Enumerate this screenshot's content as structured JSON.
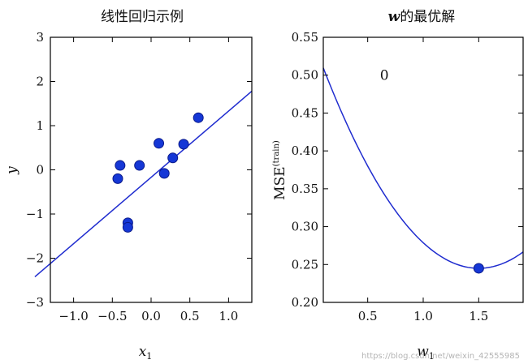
{
  "chart_data": [
    {
      "type": "scatter",
      "title": "线性回归示例",
      "xlabel": "x",
      "xlabel_sub": "1",
      "ylabel": "y",
      "xlim": [
        -1.3,
        1.3
      ],
      "ylim": [
        -3,
        3
      ],
      "xticks": [
        -1.0,
        -0.5,
        0.0,
        0.5,
        1.0
      ],
      "yticks": [
        3,
        2,
        1,
        0,
        -1,
        -2,
        -3
      ],
      "xtick_labels": [
        "−1.0",
        "−0.5",
        "0.0",
        "0.5",
        "1.0"
      ],
      "ytick_labels": [
        "3",
        "2",
        "1",
        "0",
        "−1",
        "−2",
        "−3"
      ],
      "points": [
        {
          "x": -0.43,
          "y": -0.2
        },
        {
          "x": -0.4,
          "y": 0.1
        },
        {
          "x": -0.3,
          "y": -1.2
        },
        {
          "x": -0.3,
          "y": -1.3
        },
        {
          "x": -0.15,
          "y": 0.1
        },
        {
          "x": 0.1,
          "y": 0.6
        },
        {
          "x": 0.17,
          "y": -0.08
        },
        {
          "x": 0.28,
          "y": 0.27
        },
        {
          "x": 0.42,
          "y": 0.58
        },
        {
          "x": 0.61,
          "y": 1.18
        }
      ],
      "fit_line": {
        "slope": 1.5,
        "intercept": -0.17
      },
      "grid": false,
      "colors": {
        "line": "#1f2ccf",
        "marker": "#1537d6"
      }
    },
    {
      "type": "line",
      "title_italic": "w",
      "title_rest": "的最优解",
      "xlabel": "w",
      "xlabel_sub": "1",
      "ylabel": "MSE",
      "ylabel_sup": "(train)",
      "xlim": [
        0.1,
        1.9
      ],
      "ylim": [
        0.2,
        0.55
      ],
      "xticks": [
        0.5,
        1.0,
        1.5
      ],
      "yticks": [
        0.55,
        0.5,
        0.45,
        0.4,
        0.35,
        0.3,
        0.25,
        0.2
      ],
      "xtick_labels": [
        "0.5",
        "1.0",
        "1.5"
      ],
      "ytick_labels": [
        "0.55",
        "0.50",
        "0.45",
        "0.40",
        "0.35",
        "0.30",
        "0.25",
        "0.20"
      ],
      "curve": {
        "min_x": 1.5,
        "min_y": 0.245,
        "coef": 0.135
      },
      "marker": {
        "x": 1.5,
        "y": 0.245
      },
      "annotation": {
        "text": "0",
        "x": 0.65,
        "y": 0.5
      },
      "grid": false,
      "colors": {
        "line": "#1f2ccf",
        "marker": "#1537d6"
      }
    }
  ],
  "watermark": "https://blog.csdn.net/weixin_42555985"
}
